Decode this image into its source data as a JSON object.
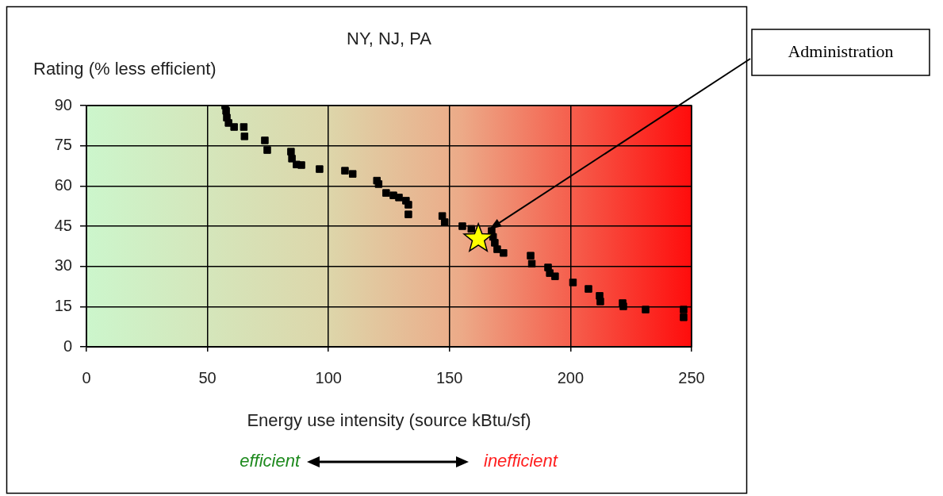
{
  "chart_data": {
    "type": "scatter",
    "title": "NY, NJ, PA",
    "ylabel": "Rating (% less efficient)",
    "xlabel": "Energy use intensity (source kBtu/sf)",
    "xlim": [
      0,
      250
    ],
    "xticks": [
      0,
      50,
      100,
      150,
      200,
      250
    ],
    "ylim": [
      0,
      90
    ],
    "yticks": [
      0,
      15,
      30,
      45,
      60,
      75,
      90
    ],
    "grid": true,
    "legend": false,
    "marker": "square",
    "series": [
      {
        "color": "#000000",
        "x": [
          57.3,
          57.7,
          58,
          58.7,
          61,
          65,
          65.3,
          73.7,
          74.7,
          84.5,
          84.9,
          86.8,
          88.8,
          96.3,
          106.8,
          110,
          120,
          120.7,
          123.8,
          126.8,
          129.1,
          132,
          133,
          133,
          147,
          148,
          155.3,
          159,
          167.4,
          168,
          168.7,
          169.7,
          172.3,
          183.5,
          184,
          190.7,
          191.4,
          193.6,
          201,
          207.4,
          212,
          212.3,
          221.5,
          221.8,
          231,
          246.7,
          246.7
        ],
        "values": [
          90,
          88,
          85.5,
          83.5,
          82,
          82,
          78.5,
          77,
          73.4,
          72.8,
          70.2,
          68,
          67.8,
          66.3,
          65.7,
          64.5,
          62,
          60.7,
          57.4,
          56.5,
          55.7,
          54.5,
          53,
          49.4,
          48.8,
          46.5,
          45,
          44,
          43.2,
          41,
          38.8,
          36.4,
          35,
          34,
          31,
          29.6,
          27.5,
          26.3,
          24,
          21.6,
          19,
          16.9,
          16.3,
          15.1,
          13.9,
          13.9,
          11
        ]
      },
      {
        "color": "#ffff00",
        "marker": "star",
        "x": [
          161.9
        ],
        "values": [
          40.3
        ]
      }
    ],
    "annotations": [
      "Administration",
      "efficient",
      "inefficient"
    ]
  }
}
